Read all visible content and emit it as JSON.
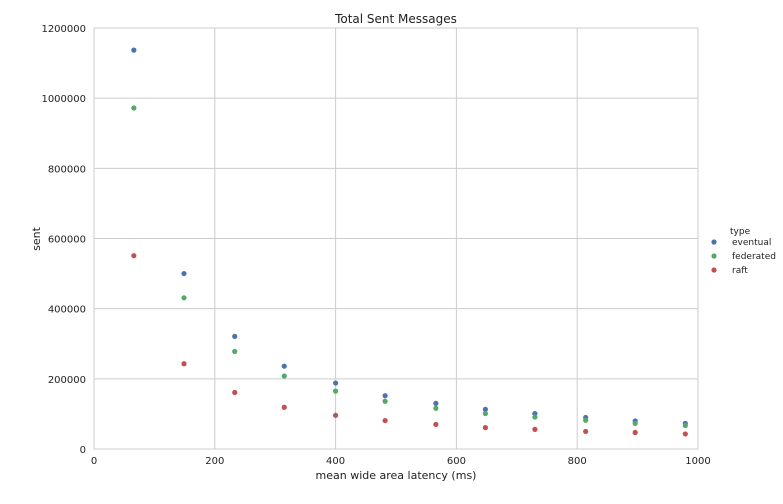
{
  "chart_data": {
    "type": "scatter",
    "title": "Total Sent Messages",
    "xlabel": "mean wide area latency (ms)",
    "ylabel": "sent",
    "xlim": [
      0,
      1000
    ],
    "ylim": [
      0,
      1200000
    ],
    "xticks": [
      0,
      200,
      400,
      600,
      800,
      1000
    ],
    "yticks": [
      0,
      200000,
      400000,
      600000,
      800000,
      1000000,
      1200000
    ],
    "grid": true,
    "legend": {
      "title": "type",
      "placement": "right"
    },
    "x": [
      66,
      149,
      233,
      315,
      400,
      482,
      566,
      648,
      730,
      814,
      896,
      979
    ],
    "series": [
      {
        "name": "eventual",
        "color": "#4c72b0",
        "values": [
          1137000,
          500000,
          321000,
          236000,
          188000,
          152000,
          130000,
          113000,
          101000,
          90000,
          80000,
          73000
        ]
      },
      {
        "name": "federated",
        "color": "#55a868",
        "values": [
          972000,
          431000,
          278000,
          208000,
          165000,
          136000,
          116000,
          101000,
          91000,
          82000,
          73000,
          67000
        ]
      },
      {
        "name": "raft",
        "color": "#c44e52",
        "values": [
          551000,
          243000,
          161000,
          119000,
          96000,
          81000,
          70000,
          61000,
          56000,
          50000,
          47000,
          43000
        ]
      }
    ]
  }
}
